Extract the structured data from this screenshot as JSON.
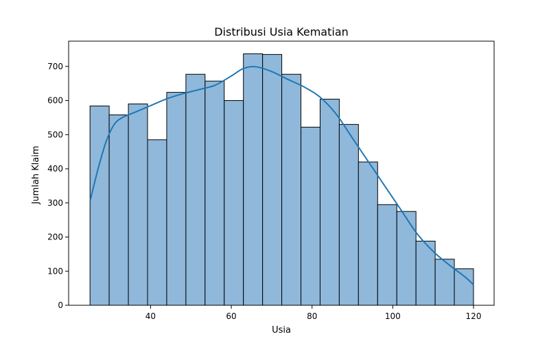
{
  "chart_data": {
    "type": "bar",
    "title": "Distribusi Usia Kematian",
    "xlabel": "Usia",
    "ylabel": "Jumlah Klaim",
    "bin_width": 4.75,
    "bins_start": [
      25,
      29.75,
      34.5,
      39.25,
      44,
      48.75,
      53.5,
      58.25,
      63,
      67.75,
      72.5,
      77.25,
      82,
      86.75,
      91.5,
      96.25,
      101,
      105.75,
      110.5,
      115.25
    ],
    "values": [
      584,
      558,
      590,
      485,
      624,
      677,
      657,
      600,
      737,
      735,
      677,
      522,
      604,
      530,
      420,
      295,
      275,
      188,
      135,
      107
    ],
    "kde": {
      "x": [
        25,
        27,
        29,
        31,
        33,
        36,
        40,
        44,
        48,
        52,
        56,
        60,
        63,
        66,
        70,
        74,
        78,
        82,
        86,
        90,
        94,
        98,
        102,
        106,
        110,
        114,
        118,
        120
      ],
      "y": [
        305,
        400,
        480,
        530,
        550,
        565,
        585,
        605,
        620,
        632,
        645,
        672,
        694,
        699,
        685,
        662,
        640,
        610,
        560,
        490,
        420,
        350,
        280,
        210,
        158,
        118,
        82,
        60
      ]
    },
    "xticks": [
      40,
      60,
      80,
      100,
      120
    ],
    "yticks": [
      0,
      100,
      200,
      300,
      400,
      500,
      600,
      700
    ],
    "xlim": [
      19.7,
      125.1
    ],
    "ylim": [
      0,
      774
    ],
    "bar_color": "#8fb8da",
    "bar_edge": "#000000",
    "line_color": "#1f77b4",
    "grid": false,
    "legend": "none"
  }
}
